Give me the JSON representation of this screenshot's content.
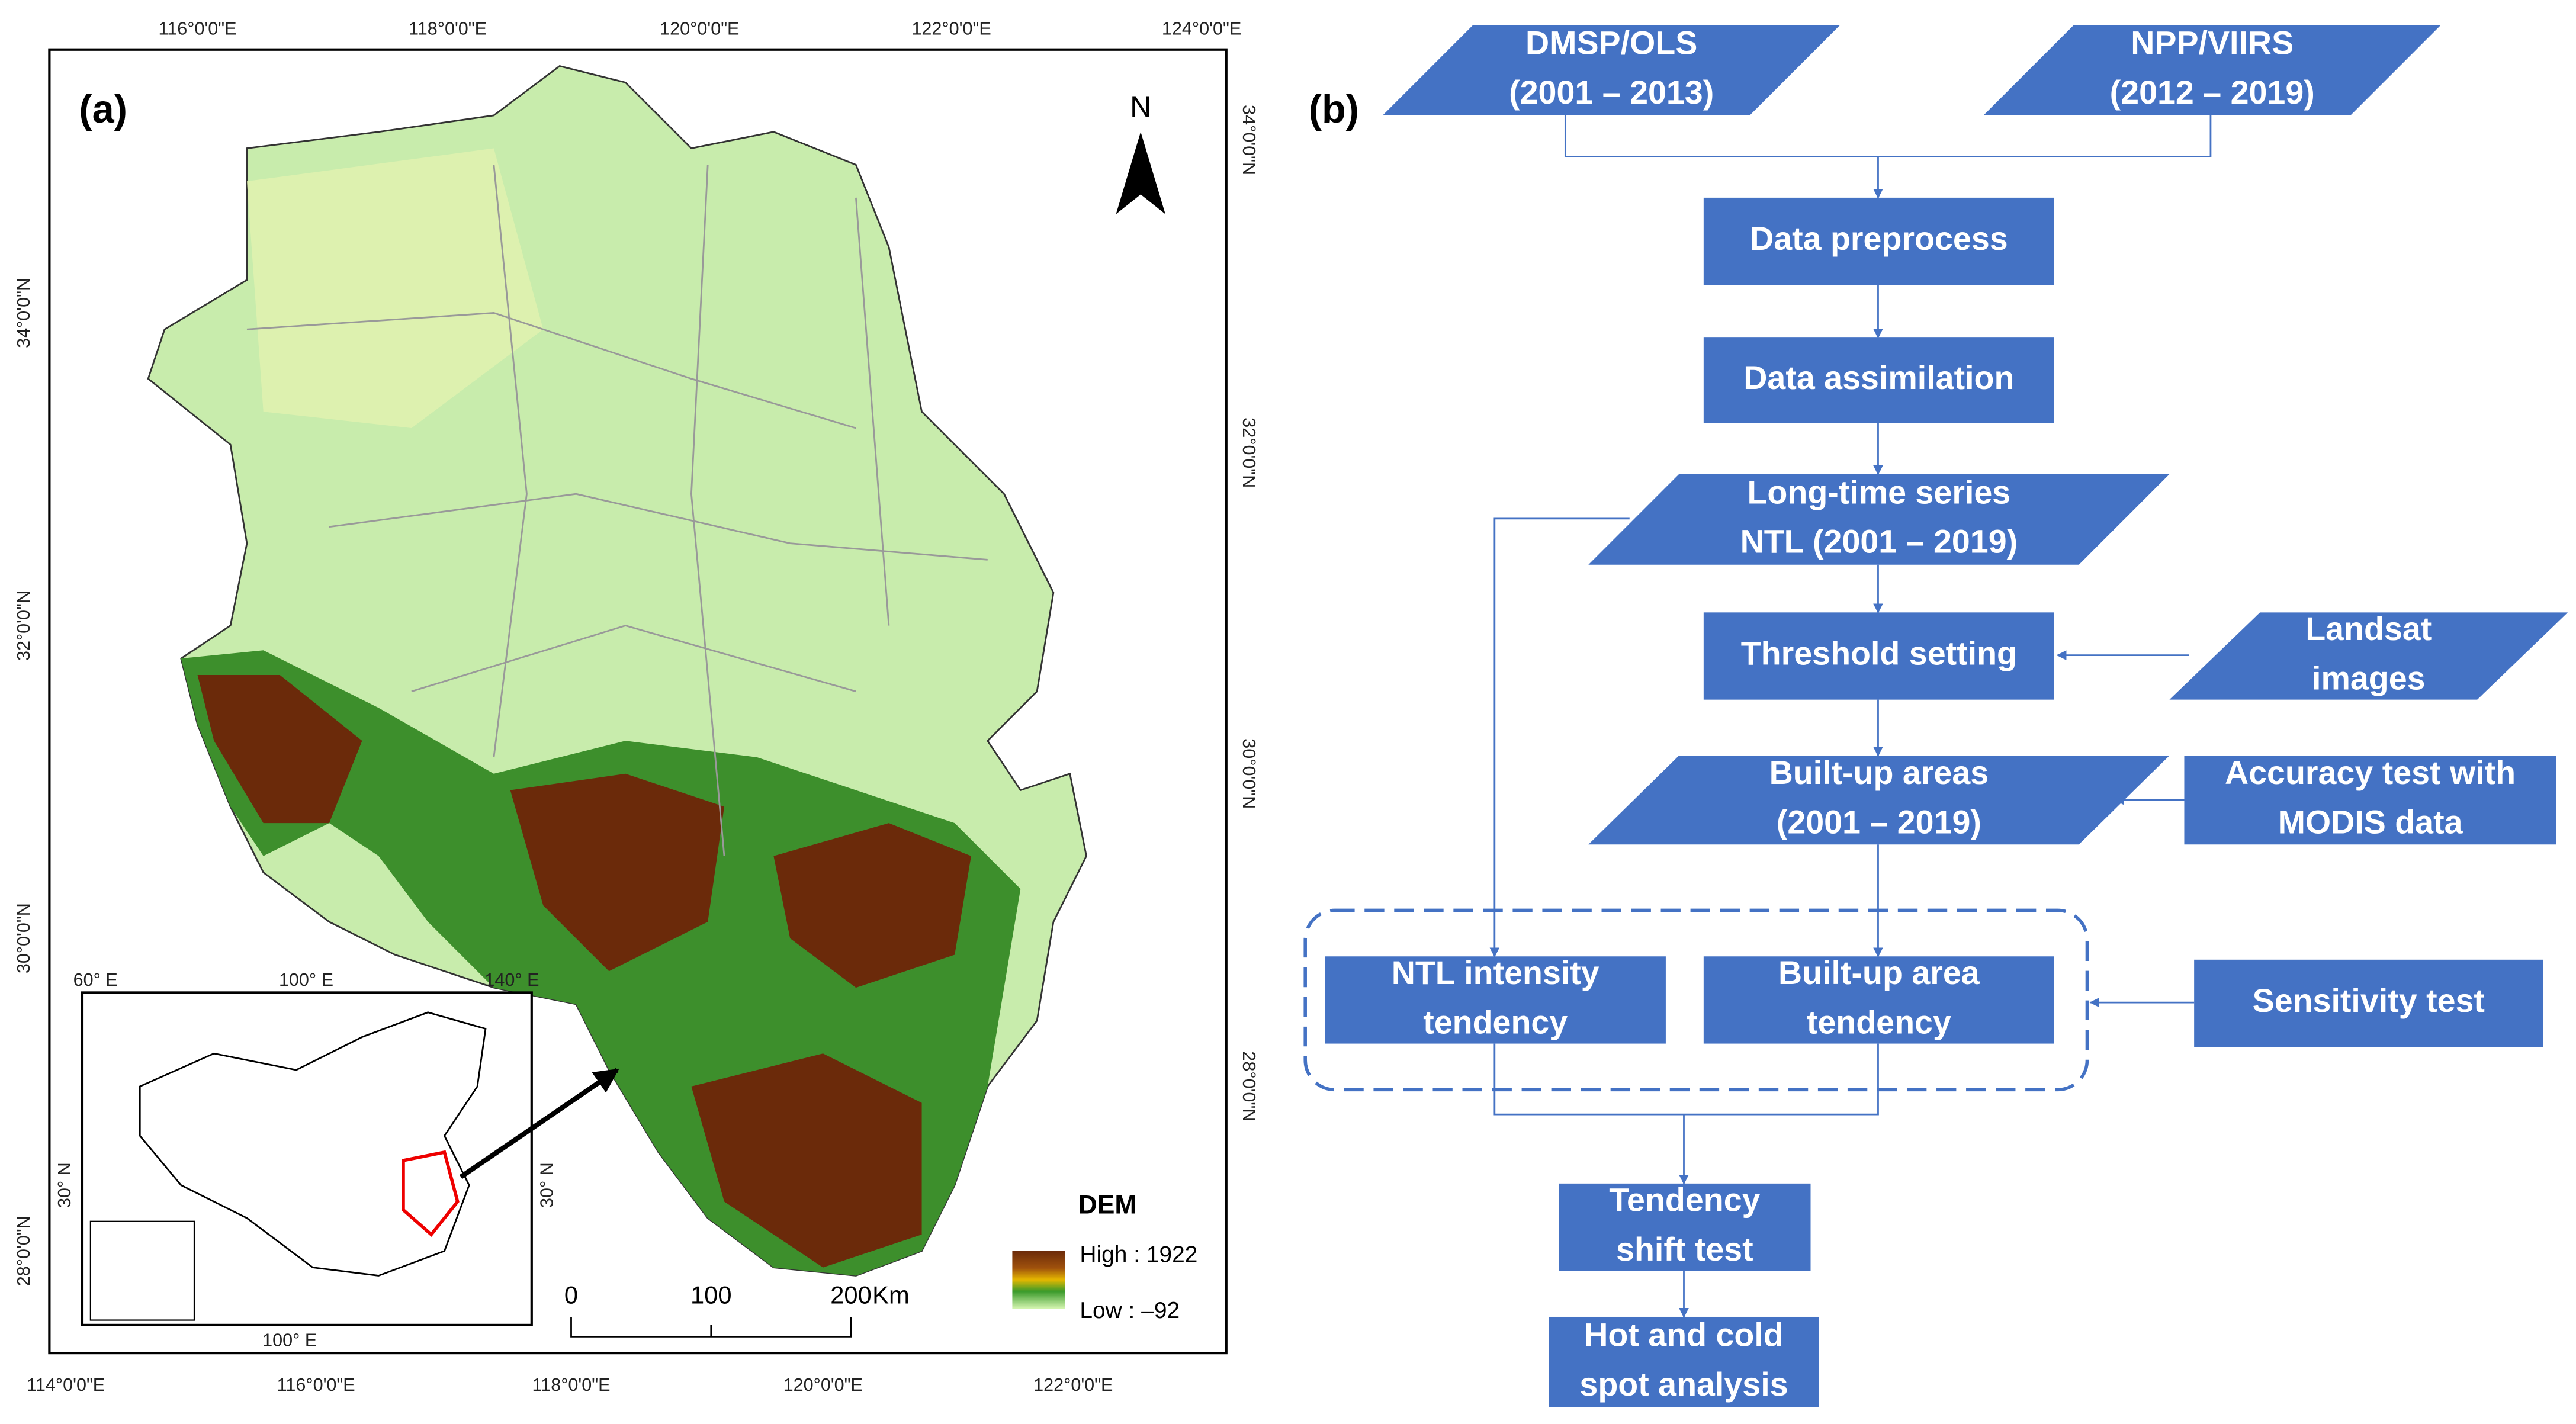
{
  "map": {
    "label": "(a)",
    "top_lon_labels": [
      "116°0'0\"E",
      "118°0'0\"E",
      "120°0'0\"E",
      "122°0'0\"E",
      "124°0'0\"E"
    ],
    "bottom_lon_labels": [
      "114°0'0\"E",
      "116°0'0\"E",
      "118°0'0\"E",
      "120°0'0\"E",
      "122°0'0\"E"
    ],
    "left_lat_labels": [
      "34°0'0\"N",
      "32°0'0\"N",
      "30°0'0\"N",
      "28°0'0\"N"
    ],
    "right_lat_labels": [
      "34°0'0\"N",
      "32°0'0\"N",
      "30°0'0\"N",
      "28°0'0\"N"
    ],
    "north": "N",
    "legend": {
      "title": "DEM",
      "high": "High : 1922",
      "low": "Low : –92"
    },
    "scale": {
      "ticks": [
        "0",
        "100",
        "200"
      ],
      "unit": "Km"
    },
    "inset": {
      "labels": [
        "60° E",
        "100° E",
        "140° E",
        "30° N",
        "30° N",
        "100° E"
      ]
    }
  },
  "flowchart": {
    "label": "(b)",
    "nodes": [
      {
        "lines": [
          "DMSP/OLS",
          "(2001 – 2013)"
        ]
      },
      {
        "lines": [
          "NPP/VIIRS",
          "(2012 – 2019)"
        ]
      },
      {
        "lines": [
          "Data preprocess"
        ]
      },
      {
        "lines": [
          "Data assimilation"
        ]
      },
      {
        "lines": [
          "Long-time series",
          "NTL (2001 – 2019)"
        ]
      },
      {
        "lines": [
          "Threshold setting"
        ]
      },
      {
        "lines": [
          "Landsat",
          "images"
        ]
      },
      {
        "lines": [
          "Built-up areas",
          "(2001 – 2019)"
        ]
      },
      {
        "lines": [
          "Accuracy test with",
          "MODIS data"
        ]
      },
      {
        "lines": [
          "NTL intensity",
          "tendency"
        ]
      },
      {
        "lines": [
          "Built-up area",
          "tendency"
        ]
      },
      {
        "lines": [
          "Sensitivity test"
        ]
      },
      {
        "lines": [
          "Tendency",
          "shift test"
        ]
      },
      {
        "lines": [
          "Hot and cold",
          "spot analysis"
        ]
      }
    ]
  }
}
